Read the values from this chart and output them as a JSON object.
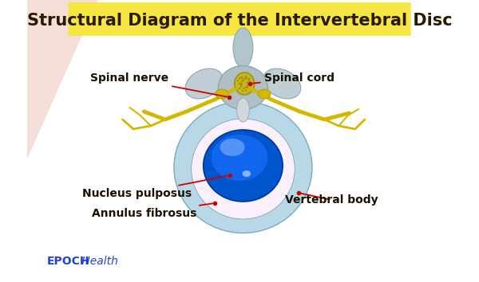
{
  "title": "Structural Diagram of the Intervertebral Disc",
  "title_color": "#2a1a00",
  "title_bg_color": "#f5e642",
  "bg_color": "#ffffff",
  "bg_pink_color": "#f5ddd8",
  "epoch_text": "EPOCH",
  "health_text": " Health",
  "epoch_color": "#2244cc",
  "labels": {
    "spinal_nerve": "Spinal nerve",
    "spinal_cord": "Spinal cord",
    "nucleus_pulposus": "Nucleus pulposus",
    "annulus_fibrosus": "Annulus fibrosus",
    "vertebral_body": "Vertebral body"
  },
  "label_color": "#1a1000",
  "arrow_color": "#cc0000",
  "label_fontsize": 10,
  "title_fontsize": 15
}
